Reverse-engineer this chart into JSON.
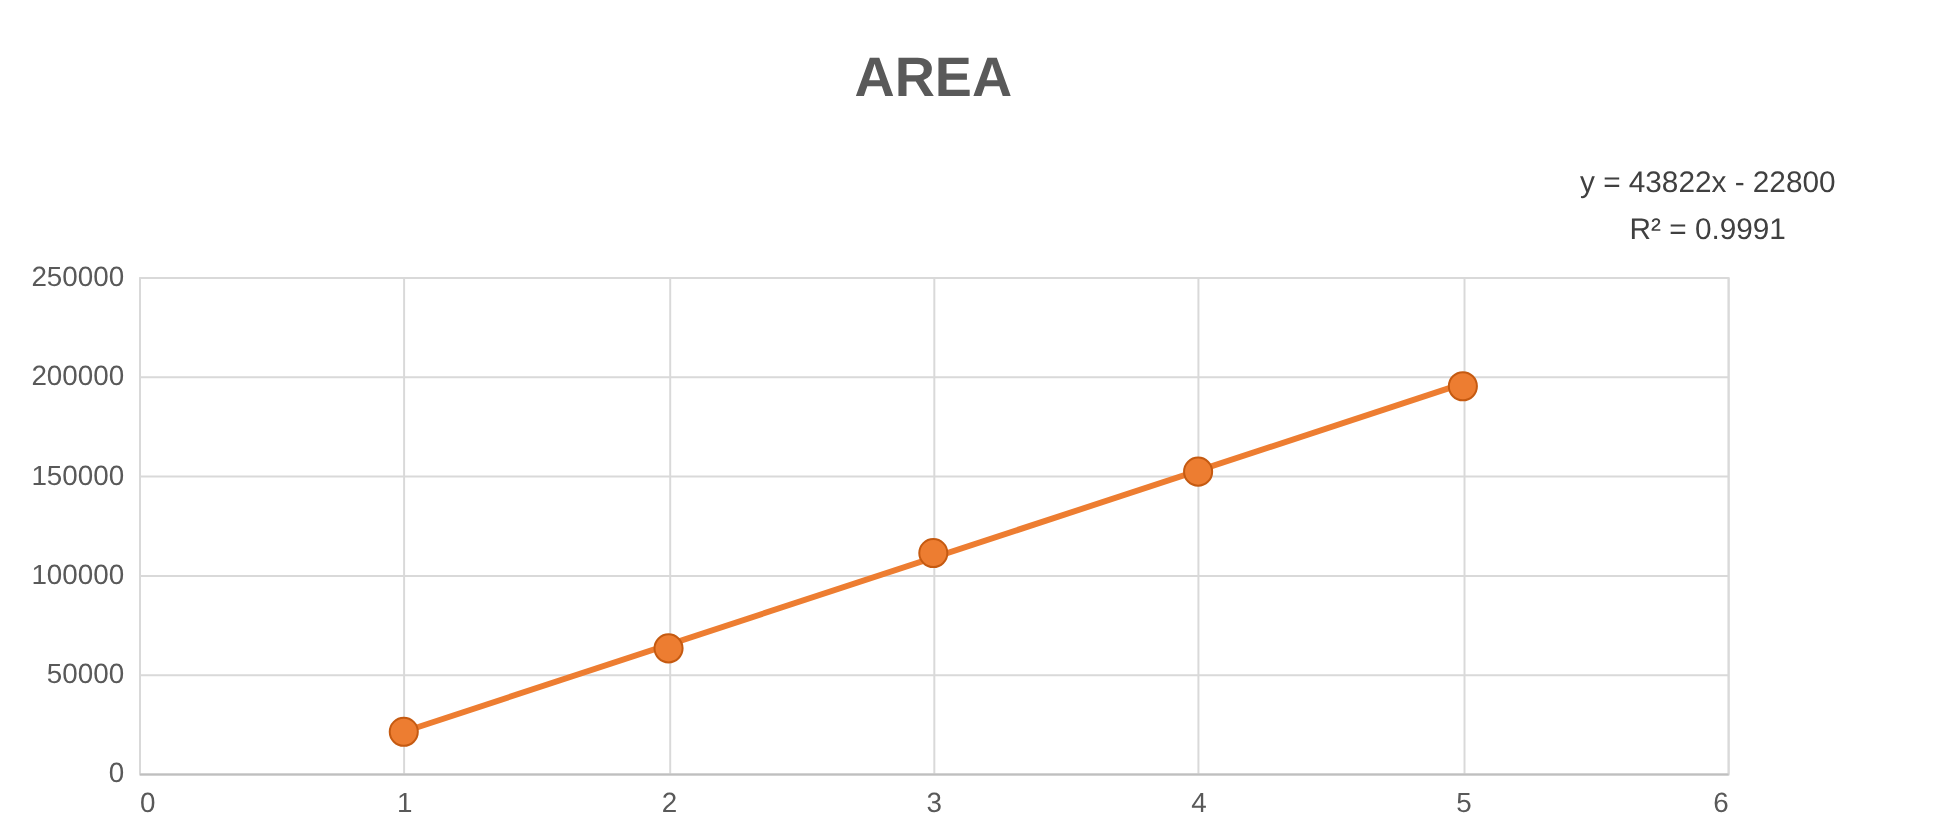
{
  "chart_data": {
    "type": "scatter",
    "title": "AREA",
    "x": [
      1,
      2,
      3,
      4,
      5
    ],
    "series": [
      {
        "color": "#ed7d31",
        "marker": "circle",
        "values": [
          21000,
          63000,
          111000,
          152000,
          195000
        ]
      },
      {
        "type": "line",
        "color": "#ed7d31",
        "x": [
          1,
          5
        ],
        "values": [
          21022,
          196310
        ],
        "line_style": "solid",
        "marker": "none"
      }
    ],
    "annotations": [
      "y = 43822x - 22800",
      "R² = 0.9991"
    ],
    "xlim": [
      0,
      6
    ],
    "xticks": [
      0,
      1,
      2,
      3,
      4,
      5,
      6
    ],
    "ylim": [
      0,
      250000
    ],
    "yticks": [
      0,
      50000,
      100000,
      150000,
      200000,
      250000
    ],
    "grid": true
  }
}
